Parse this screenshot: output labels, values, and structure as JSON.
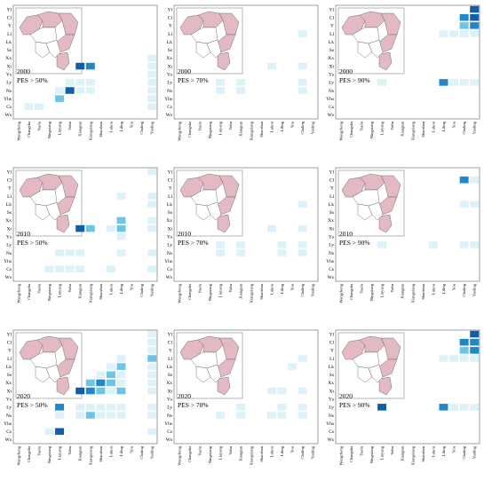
{
  "figure": {
    "colors": {
      "frame": "#888888",
      "map_fill": "#e3b9c4",
      "map_fill_white": "#ffffff",
      "map_stroke": "#555555",
      "cell_low": "#dcf1f8",
      "cell_mid": "#6cc5e6",
      "cell_high": "#1e88c8",
      "cell_max": "#0d5fa8"
    },
    "rows": [
      "Yl",
      "Cl",
      "Y",
      "Ll",
      "Lk",
      "Ss",
      "Xx",
      "Xt",
      "Ys",
      "Ly",
      "Ns",
      "Yhs",
      "Cs",
      "Ws"
    ],
    "cols": [
      "Wangcheng",
      "Changsha",
      "Yuelu",
      "Ningxiang",
      "Liuyang",
      "Yuhu",
      "Xiangtan",
      "Xiangxiang",
      "Shaoshan",
      "Lukou",
      "Liling",
      "You",
      "Chaling",
      "Yanling"
    ]
  },
  "chart_data": [
    {
      "type": "heatmap",
      "title": "2000",
      "subtitle": "PES > 50%",
      "cells": [
        {
          "row": "Xt",
          "col": "Xiangtan",
          "value": 4.0
        },
        {
          "row": "Xt",
          "col": "Xiangxiang",
          "value": 3.0
        },
        {
          "row": "Ys",
          "col": "Yanling",
          "value": 1.0
        },
        {
          "row": "Ly",
          "col": "Yuhu",
          "value": 1.0
        },
        {
          "row": "Ly",
          "col": "Xiangtan",
          "value": 1.0
        },
        {
          "row": "Ly",
          "col": "Xiangxiang",
          "value": 1.0
        },
        {
          "row": "Ly",
          "col": "Yanling",
          "value": 1.0
        },
        {
          "row": "Ns",
          "col": "Liuyang",
          "value": 1.0
        },
        {
          "row": "Ns",
          "col": "Yuhu",
          "value": 4.0
        },
        {
          "row": "Ns",
          "col": "Xiangtan",
          "value": 1.0
        },
        {
          "row": "Ns",
          "col": "Xiangxiang",
          "value": 1.0
        },
        {
          "row": "Ns",
          "col": "Yanling",
          "value": 1.0
        },
        {
          "row": "Yhs",
          "col": "Liuyang",
          "value": 2.0
        },
        {
          "row": "Yhs",
          "col": "Yanling",
          "value": 1.0
        },
        {
          "row": "Cs",
          "col": "Changsha",
          "value": 1.0
        },
        {
          "row": "Cs",
          "col": "Yuelu",
          "value": 1.0
        },
        {
          "row": "Cs",
          "col": "Yanling",
          "value": 1.0
        },
        {
          "row": "Xx",
          "col": "Yanling",
          "value": 1.0
        },
        {
          "row": "Xt",
          "col": "Yanling",
          "value": 1.0
        }
      ]
    },
    {
      "type": "heatmap",
      "title": "2000",
      "subtitle": "PES > 70%",
      "cells": [
        {
          "row": "Ll",
          "col": "Chaling",
          "value": 1.0
        },
        {
          "row": "Xt",
          "col": "Lukou",
          "value": 1.0
        },
        {
          "row": "Xt",
          "col": "Chaling",
          "value": 1.0
        },
        {
          "row": "Ly",
          "col": "Liuyang",
          "value": 1.0
        },
        {
          "row": "Ly",
          "col": "Xiangtan",
          "value": 1.0
        },
        {
          "row": "Ly",
          "col": "Chaling",
          "value": 1.0
        },
        {
          "row": "Ns",
          "col": "Liuyang",
          "value": 1.0
        },
        {
          "row": "Ns",
          "col": "Xiangtan",
          "value": 1.0
        },
        {
          "row": "Ns",
          "col": "Chaling",
          "value": 1.0
        }
      ]
    },
    {
      "type": "heatmap",
      "title": "2000",
      "subtitle": "PES > 90%",
      "cells": [
        {
          "row": "Yl",
          "col": "Yanling",
          "value": 4.0
        },
        {
          "row": "Cl",
          "col": "Chaling",
          "value": 3.0
        },
        {
          "row": "Cl",
          "col": "Yanling",
          "value": 4.0
        },
        {
          "row": "Y",
          "col": "Chaling",
          "value": 2.0
        },
        {
          "row": "Y",
          "col": "Yanling",
          "value": 3.0
        },
        {
          "row": "Ll",
          "col": "Liling",
          "value": 1.0
        },
        {
          "row": "Ll",
          "col": "You",
          "value": 1.0
        },
        {
          "row": "Ll",
          "col": "Chaling",
          "value": 1.0
        },
        {
          "row": "Ll",
          "col": "Yanling",
          "value": 1.0
        },
        {
          "row": "Ly",
          "col": "Liuyang",
          "value": 1.0
        },
        {
          "row": "Ly",
          "col": "Liling",
          "value": 3.0
        },
        {
          "row": "Ly",
          "col": "You",
          "value": 1.0
        },
        {
          "row": "Ly",
          "col": "Chaling",
          "value": 1.0
        },
        {
          "row": "Ly",
          "col": "Yanling",
          "value": 1.0
        }
      ]
    },
    {
      "type": "heatmap",
      "title": "2010",
      "subtitle": "PES > 50%",
      "cells": [
        {
          "row": "Yl",
          "col": "Yanling",
          "value": 1.0
        },
        {
          "row": "Ll",
          "col": "Liling",
          "value": 1.0
        },
        {
          "row": "Ll",
          "col": "Yanling",
          "value": 1.0
        },
        {
          "row": "Lk",
          "col": "Yanling",
          "value": 1.0
        },
        {
          "row": "Xx",
          "col": "Liling",
          "value": 2.0
        },
        {
          "row": "Xx",
          "col": "Yanling",
          "value": 1.0
        },
        {
          "row": "Xt",
          "col": "Xiangtan",
          "value": 4.0
        },
        {
          "row": "Xt",
          "col": "Xiangxiang",
          "value": 2.0
        },
        {
          "row": "Xt",
          "col": "Lukou",
          "value": 1.0
        },
        {
          "row": "Xt",
          "col": "Liling",
          "value": 2.0
        },
        {
          "row": "Xt",
          "col": "Yanling",
          "value": 1.0
        },
        {
          "row": "Ys",
          "col": "Liling",
          "value": 1.0
        },
        {
          "row": "Ns",
          "col": "Liuyang",
          "value": 1.0
        },
        {
          "row": "Ns",
          "col": "Yuhu",
          "value": 1.0
        },
        {
          "row": "Ns",
          "col": "Xiangtan",
          "value": 1.0
        },
        {
          "row": "Ns",
          "col": "Liling",
          "value": 1.0
        },
        {
          "row": "Ns",
          "col": "Yanling",
          "value": 1.0
        },
        {
          "row": "Cs",
          "col": "Ningxiang",
          "value": 1.0
        },
        {
          "row": "Cs",
          "col": "Liuyang",
          "value": 1.0
        },
        {
          "row": "Cs",
          "col": "Yuhu",
          "value": 1.0
        },
        {
          "row": "Cs",
          "col": "Xiangtan",
          "value": 1.0
        },
        {
          "row": "Cs",
          "col": "Lukou",
          "value": 1.0
        },
        {
          "row": "Cs",
          "col": "Yanling",
          "value": 1.0
        }
      ]
    },
    {
      "type": "heatmap",
      "title": "2010",
      "subtitle": "PES > 70%",
      "cells": [
        {
          "row": "Lk",
          "col": "Chaling",
          "value": 1.0
        },
        {
          "row": "Xt",
          "col": "Lukou",
          "value": 1.0
        },
        {
          "row": "Xt",
          "col": "Chaling",
          "value": 1.0
        },
        {
          "row": "Ly",
          "col": "Liuyang",
          "value": 1.0
        },
        {
          "row": "Ly",
          "col": "Xiangtan",
          "value": 1.0
        },
        {
          "row": "Ly",
          "col": "Liling",
          "value": 1.0
        },
        {
          "row": "Ly",
          "col": "Chaling",
          "value": 1.0
        },
        {
          "row": "Ns",
          "col": "Liuyang",
          "value": 1.0
        },
        {
          "row": "Ns",
          "col": "Xiangtan",
          "value": 1.0
        },
        {
          "row": "Ns",
          "col": "Liling",
          "value": 1.0
        },
        {
          "row": "Ns",
          "col": "Chaling",
          "value": 1.0
        }
      ]
    },
    {
      "type": "heatmap",
      "title": "2010",
      "subtitle": "PES > 90%",
      "cells": [
        {
          "row": "Cl",
          "col": "Chaling",
          "value": 3.0
        },
        {
          "row": "Cl",
          "col": "Yanling",
          "value": 1.0
        },
        {
          "row": "Lk",
          "col": "Chaling",
          "value": 1.0
        },
        {
          "row": "Lk",
          "col": "Yanling",
          "value": 1.0
        },
        {
          "row": "Ly",
          "col": "Liuyang",
          "value": 1.0
        },
        {
          "row": "Ly",
          "col": "Lukou",
          "value": 1.0
        },
        {
          "row": "Ly",
          "col": "Chaling",
          "value": 1.0
        },
        {
          "row": "Ly",
          "col": "Yanling",
          "value": 1.0
        }
      ]
    },
    {
      "type": "heatmap",
      "title": "2020",
      "subtitle": "PES > 50%",
      "cells": [
        {
          "row": "Yl",
          "col": "Yanling",
          "value": 1.0
        },
        {
          "row": "Cl",
          "col": "Yanling",
          "value": 1.0
        },
        {
          "row": "Y",
          "col": "Yanling",
          "value": 1.0
        },
        {
          "row": "Ll",
          "col": "Liling",
          "value": 1.0
        },
        {
          "row": "Ll",
          "col": "Yanling",
          "value": 2.0
        },
        {
          "row": "Lk",
          "col": "Lukou",
          "value": 1.0
        },
        {
          "row": "Lk",
          "col": "Liling",
          "value": 2.0
        },
        {
          "row": "Lk",
          "col": "Yanling",
          "value": 1.0
        },
        {
          "row": "Ss",
          "col": "Shaoshan",
          "value": 1.0
        },
        {
          "row": "Ss",
          "col": "Lukou",
          "value": 2.0
        },
        {
          "row": "Ss",
          "col": "Liling",
          "value": 1.0
        },
        {
          "row": "Ss",
          "col": "Yanling",
          "value": 1.0
        },
        {
          "row": "Xx",
          "col": "Xiangxiang",
          "value": 2.0
        },
        {
          "row": "Xx",
          "col": "Shaoshan",
          "value": 3.0
        },
        {
          "row": "Xx",
          "col": "Lukou",
          "value": 2.0
        },
        {
          "row": "Xx",
          "col": "Liling",
          "value": 1.0
        },
        {
          "row": "Xx",
          "col": "Yanling",
          "value": 1.0
        },
        {
          "row": "Xt",
          "col": "Xiangtan",
          "value": 4.0
        },
        {
          "row": "Xt",
          "col": "Xiangxiang",
          "value": 3.0
        },
        {
          "row": "Xt",
          "col": "Shaoshan",
          "value": 2.0
        },
        {
          "row": "Xt",
          "col": "Lukou",
          "value": 1.0
        },
        {
          "row": "Xt",
          "col": "Liling",
          "value": 2.0
        },
        {
          "row": "Xt",
          "col": "Yanling",
          "value": 1.0
        },
        {
          "row": "Ly",
          "col": "Liuyang",
          "value": 3.0
        },
        {
          "row": "Ly",
          "col": "Xiangtan",
          "value": 1.0
        },
        {
          "row": "Ly",
          "col": "Xiangxiang",
          "value": 1.0
        },
        {
          "row": "Ly",
          "col": "Shaoshan",
          "value": 1.0
        },
        {
          "row": "Ly",
          "col": "Lukou",
          "value": 1.0
        },
        {
          "row": "Ly",
          "col": "Liling",
          "value": 1.0
        },
        {
          "row": "Ly",
          "col": "Yanling",
          "value": 1.0
        },
        {
          "row": "Ns",
          "col": "Liuyang",
          "value": 1.0
        },
        {
          "row": "Ns",
          "col": "Xiangtan",
          "value": 1.0
        },
        {
          "row": "Ns",
          "col": "Xiangxiang",
          "value": 2.0
        },
        {
          "row": "Ns",
          "col": "Shaoshan",
          "value": 1.0
        },
        {
          "row": "Ns",
          "col": "Lukou",
          "value": 1.0
        },
        {
          "row": "Ns",
          "col": "Liling",
          "value": 1.0
        },
        {
          "row": "Ns",
          "col": "Yanling",
          "value": 1.0
        },
        {
          "row": "Cs",
          "col": "Ningxiang",
          "value": 1.0
        },
        {
          "row": "Cs",
          "col": "Liuyang",
          "value": 4.0
        },
        {
          "row": "Cs",
          "col": "Yanling",
          "value": 1.0
        }
      ]
    },
    {
      "type": "heatmap",
      "title": "2020",
      "subtitle": "PES > 70%",
      "cells": [
        {
          "row": "Ll",
          "col": "Chaling",
          "value": 1.0
        },
        {
          "row": "Lk",
          "col": "You",
          "value": 1.0
        },
        {
          "row": "Xt",
          "col": "Lukou",
          "value": 1.0
        },
        {
          "row": "Xt",
          "col": "Liling",
          "value": 1.0
        },
        {
          "row": "Xt",
          "col": "Chaling",
          "value": 1.0
        },
        {
          "row": "Ly",
          "col": "Xiangtan",
          "value": 1.0
        },
        {
          "row": "Ly",
          "col": "Liling",
          "value": 1.0
        },
        {
          "row": "Ly",
          "col": "Chaling",
          "value": 1.0
        },
        {
          "row": "Ns",
          "col": "Liuyang",
          "value": 1.0
        },
        {
          "row": "Ns",
          "col": "Xiangtan",
          "value": 1.0
        },
        {
          "row": "Ns",
          "col": "Lukou",
          "value": 1.0
        },
        {
          "row": "Ns",
          "col": "Liling",
          "value": 1.0
        },
        {
          "row": "Ns",
          "col": "Chaling",
          "value": 1.0
        }
      ]
    },
    {
      "type": "heatmap",
      "title": "2020",
      "subtitle": "PES > 90%",
      "cells": [
        {
          "row": "Yl",
          "col": "Yanling",
          "value": 4.0
        },
        {
          "row": "Cl",
          "col": "Chaling",
          "value": 3.0
        },
        {
          "row": "Cl",
          "col": "Yanling",
          "value": 3.0
        },
        {
          "row": "Y",
          "col": "Chaling",
          "value": 2.0
        },
        {
          "row": "Y",
          "col": "Yanling",
          "value": 3.0
        },
        {
          "row": "Ll",
          "col": "Liling",
          "value": 1.0
        },
        {
          "row": "Ll",
          "col": "You",
          "value": 1.0
        },
        {
          "row": "Ll",
          "col": "Chaling",
          "value": 1.0
        },
        {
          "row": "Ll",
          "col": "Yanling",
          "value": 1.0
        },
        {
          "row": "Ly",
          "col": "Liuyang",
          "value": 4.0
        },
        {
          "row": "Ly",
          "col": "Liling",
          "value": 3.0
        },
        {
          "row": "Ly",
          "col": "You",
          "value": 1.0
        },
        {
          "row": "Ly",
          "col": "Chaling",
          "value": 1.0
        },
        {
          "row": "Ly",
          "col": "Yanling",
          "value": 1.0
        }
      ]
    }
  ]
}
